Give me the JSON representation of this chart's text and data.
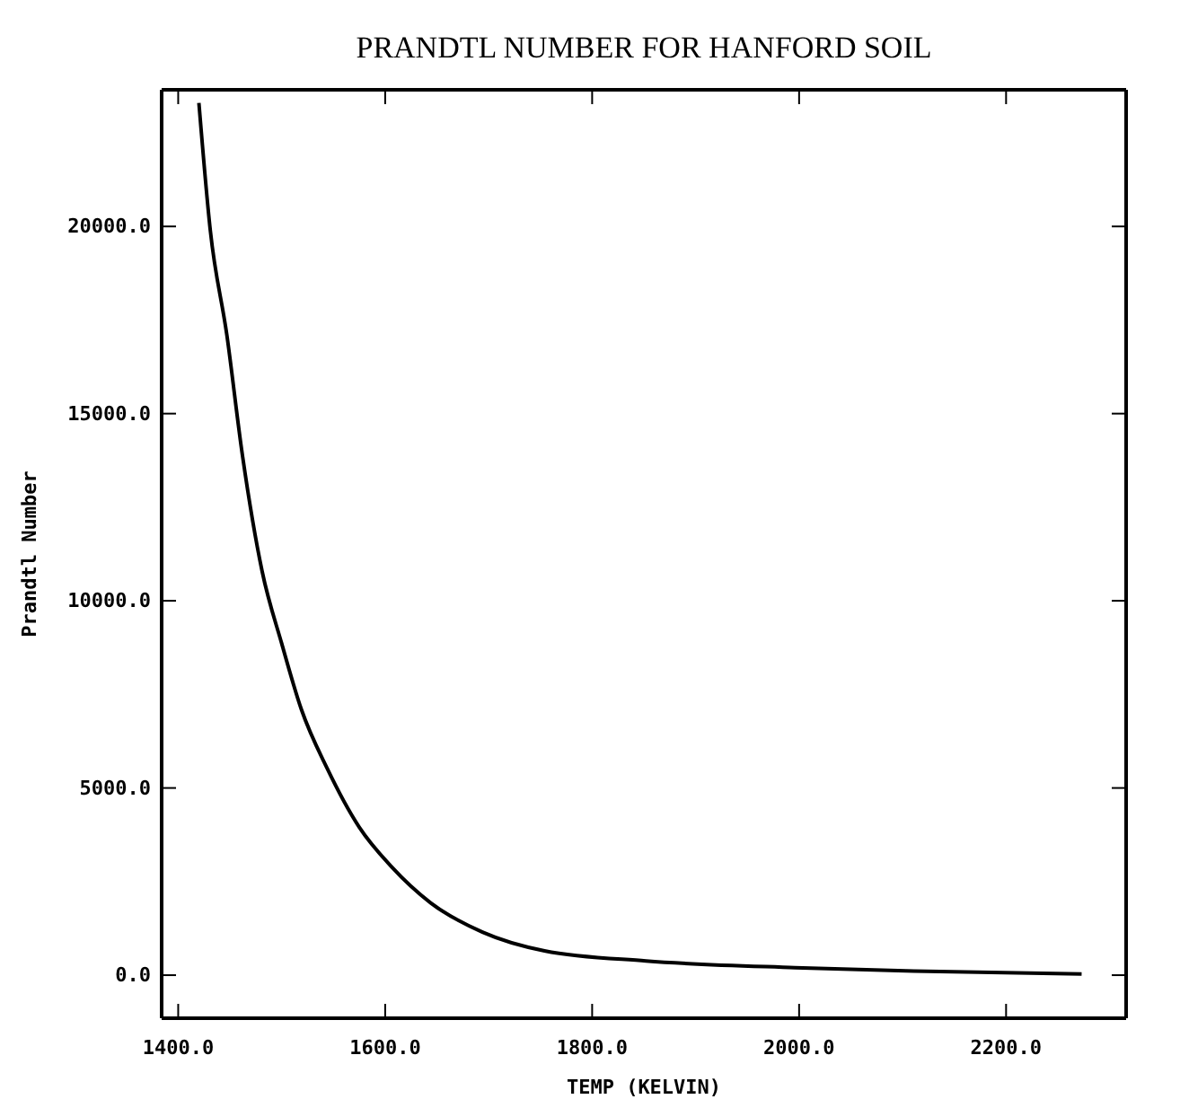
{
  "chart_data": {
    "type": "line",
    "title": "PRANDTL NUMBER FOR HANFORD SOIL",
    "xlabel": "TEMP (KELVIN)",
    "ylabel": "Prandtl Number",
    "x": [
      1420,
      1431,
      1447,
      1462,
      1481,
      1500,
      1519,
      1544,
      1575,
      1606,
      1644,
      1694,
      1754,
      1852,
      1996,
      2111,
      2273
    ],
    "series": [
      {
        "color": "#000000",
        "values": [
          23300,
          19900,
          17100,
          13900,
          10800,
          8860,
          7100,
          5520,
          3950,
          2900,
          1930,
          1150,
          650,
          380,
          200,
          110,
          30
        ]
      }
    ],
    "xlim": [
      1384,
      2316
    ],
    "ylim": [
      -1150,
      23650
    ],
    "xticks": [
      {
        "value": 1400,
        "label": "1400.0"
      },
      {
        "value": 1600,
        "label": "1600.0"
      },
      {
        "value": 1800,
        "label": "1800.0"
      },
      {
        "value": 2000,
        "label": "2000.0"
      },
      {
        "value": 2200,
        "label": "2200.0"
      }
    ],
    "yticks": [
      {
        "value": 0,
        "label": "0.0"
      },
      {
        "value": 5000,
        "label": "5000.0"
      },
      {
        "value": 10000,
        "label": "10000.0"
      },
      {
        "value": 15000,
        "label": "15000.0"
      },
      {
        "value": 20000,
        "label": "20000.0"
      }
    ],
    "grid": false,
    "marker": "none",
    "line_style": "solid"
  }
}
